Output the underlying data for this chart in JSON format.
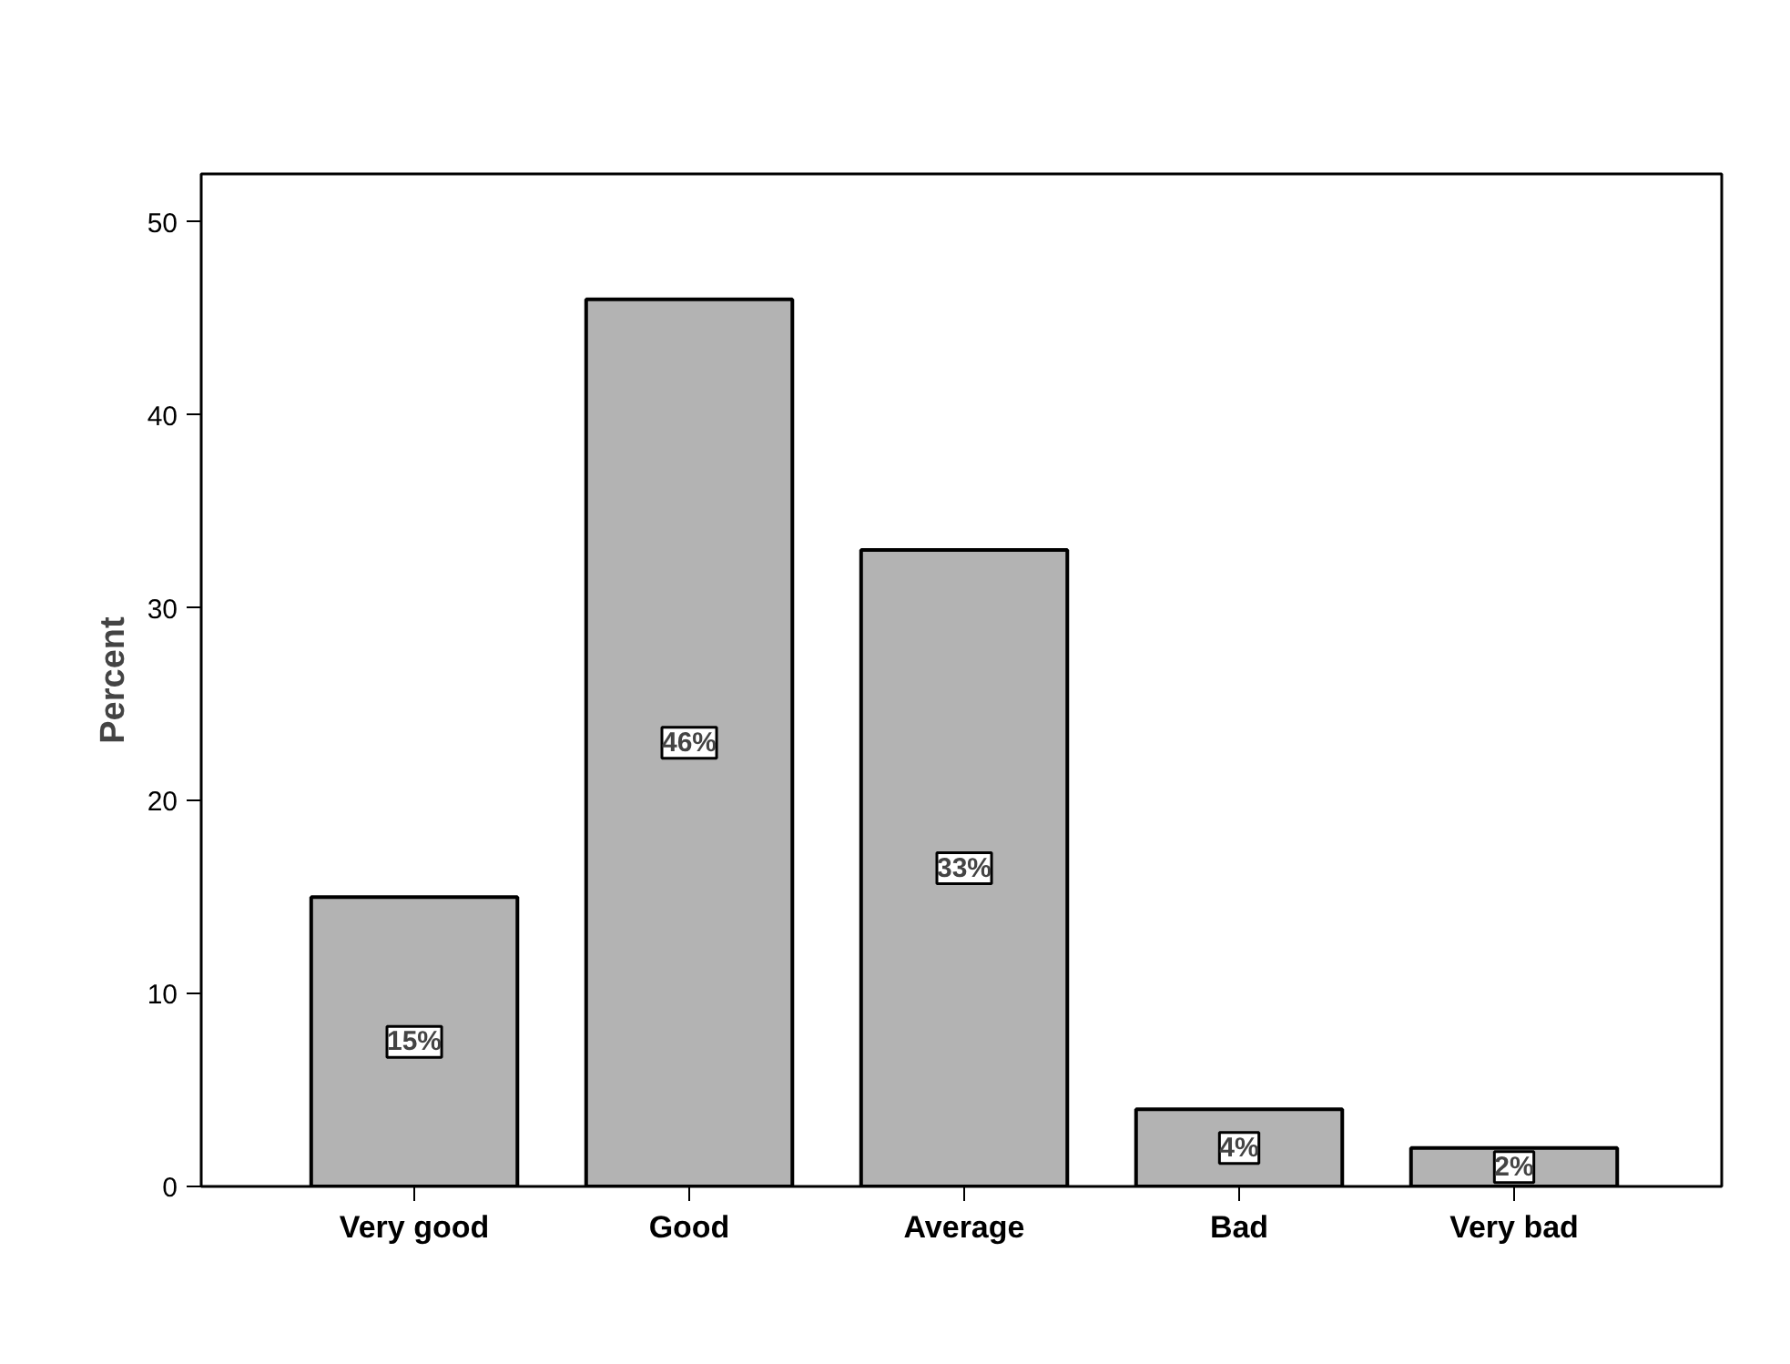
{
  "chart_data": {
    "type": "bar",
    "ylabel": "Percent",
    "categories": [
      "Very good",
      "Good",
      "Average",
      "Bad",
      "Very bad"
    ],
    "values": [
      15,
      46,
      33,
      4,
      2
    ],
    "value_labels": [
      "15%",
      "46%",
      "33%",
      "4%",
      "2%"
    ],
    "color": "#b3b3b3",
    "ylim": [
      0,
      52.5
    ],
    "yticks": [
      0,
      10,
      20,
      30,
      40,
      50
    ],
    "grid": false
  }
}
